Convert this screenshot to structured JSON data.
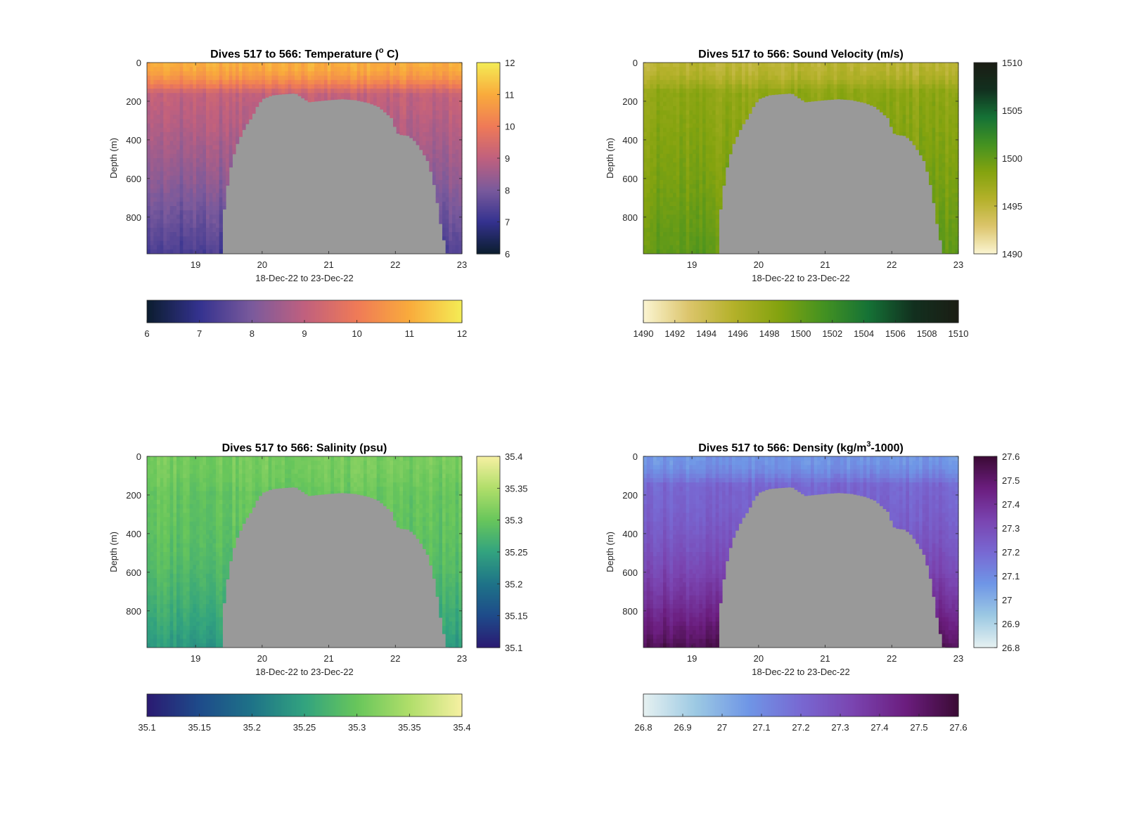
{
  "chart_data": [
    {
      "type": "heatmap",
      "title": "Dives 517 to 566: Temperature (",
      "title_super": "o",
      "title_after": " C)",
      "xlabel": "18-Dec-22 to 23-Dec-22",
      "ylabel": "Depth (m)",
      "xlim": [
        18.27,
        23.0
      ],
      "ylim": [
        0,
        990
      ],
      "y_reversed": true,
      "xticks": [
        19,
        20,
        21,
        22,
        23
      ],
      "yticks": [
        0,
        200,
        400,
        600,
        800
      ],
      "colormap": [
        "#0b1d2e",
        "#34328f",
        "#7a5a9c",
        "#c0607e",
        "#ef7a57",
        "#f9ab3c",
        "#f4ec55"
      ],
      "clim": [
        6,
        12
      ],
      "colorbar_ticks": [
        6,
        7,
        8,
        9,
        10,
        11,
        12
      ],
      "horizontal_colorbar_ticks": [
        6,
        7,
        8,
        9,
        10,
        11,
        12
      ],
      "surface_value": 11.0,
      "deep_value": 7.8,
      "bottom_value": 7.3,
      "transition_depth": 160,
      "no_data_color": "#999999"
    },
    {
      "type": "heatmap",
      "title": "Dives 517 to 566: Sound Velocity (m/s)",
      "xlabel": "18-Dec-22 to 23-Dec-22",
      "ylabel": "Depth (m)",
      "xlim": [
        18.27,
        23.0
      ],
      "ylim": [
        0,
        990
      ],
      "y_reversed": true,
      "xticks": [
        19,
        20,
        21,
        22,
        23
      ],
      "yticks": [
        0,
        200,
        400,
        600,
        800
      ],
      "colormap": [
        "#fbf5d2",
        "#dcc56c",
        "#b4b12a",
        "#84a30f",
        "#449221",
        "#157236",
        "#12301f",
        "#1b1d14"
      ],
      "clim": [
        1490,
        1510
      ],
      "colorbar_ticks": [
        1490,
        1495,
        1500,
        1505,
        1510
      ],
      "horizontal_colorbar_ticks": [
        1490,
        1492,
        1494,
        1496,
        1498,
        1500,
        1502,
        1504,
        1506,
        1508,
        1510
      ],
      "surface_value": 1495.2,
      "deep_value": 1499.6,
      "bottom_value": 1500.2,
      "transition_depth": 150,
      "no_data_color": "#999999"
    },
    {
      "type": "heatmap",
      "title": "Dives 517 to 566: Salinity (psu)",
      "xlabel": "18-Dec-22 to 23-Dec-22",
      "ylabel": "Depth (m)",
      "xlim": [
        18.27,
        23.0
      ],
      "ylim": [
        0,
        990
      ],
      "y_reversed": true,
      "xticks": [
        19,
        20,
        21,
        22,
        23
      ],
      "yticks": [
        0,
        200,
        400,
        600,
        800
      ],
      "colormap": [
        "#2b1a72",
        "#1e4b8a",
        "#1e7388",
        "#32a37f",
        "#68c65b",
        "#b0de6a",
        "#f6f0a2"
      ],
      "clim": [
        35.1,
        35.4
      ],
      "colorbar_ticks": [
        35.1,
        35.15,
        35.2,
        35.25,
        35.3,
        35.35,
        35.4
      ],
      "horizontal_colorbar_ticks": [
        35.1,
        35.15,
        35.2,
        35.25,
        35.3,
        35.35,
        35.4
      ],
      "surface_value": 35.31,
      "deep_value": 35.29,
      "bottom_value": 35.24,
      "transition_depth": 190,
      "no_data_color": "#999999"
    },
    {
      "type": "heatmap",
      "title": "Dives 517 to 566: Density (kg/m",
      "title_super": "3",
      "title_after": "-1000)",
      "xlabel": "18-Dec-22 to 23-Dec-22",
      "ylabel": "Depth (m)",
      "xlim": [
        18.27,
        23.0
      ],
      "ylim": [
        0,
        990
      ],
      "y_reversed": true,
      "xticks": [
        19,
        20,
        21,
        22,
        23
      ],
      "yticks": [
        0,
        200,
        400,
        600,
        800
      ],
      "colormap": [
        "#e6f1f1",
        "#9cc9e3",
        "#6f96e6",
        "#7868d2",
        "#7a44b0",
        "#6b1d7e",
        "#3b0b35"
      ],
      "clim": [
        26.8,
        27.6
      ],
      "colorbar_ticks": [
        26.8,
        26.9,
        27,
        27.1,
        27.2,
        27.3,
        27.4,
        27.5,
        27.6
      ],
      "horizontal_colorbar_ticks": [
        26.8,
        26.9,
        27,
        27.1,
        27.2,
        27.3,
        27.4,
        27.5,
        27.6
      ],
      "surface_value": 27.07,
      "deep_value": 27.3,
      "bottom_value": 27.55,
      "transition_depth": 150,
      "no_data_color": "#999999"
    }
  ],
  "bathymetry": {
    "x": [
      18.27,
      19.4,
      19.42,
      19.5,
      19.6,
      19.68,
      19.75,
      19.85,
      19.92,
      20.0,
      20.15,
      20.3,
      20.5,
      20.7,
      21.0,
      21.2,
      21.4,
      21.6,
      21.75,
      21.85,
      21.95,
      22.02,
      22.08,
      22.2,
      22.3,
      22.4,
      22.5,
      22.6,
      22.7,
      22.78,
      23.0
    ],
    "depth": [
      990,
      990,
      780,
      580,
      440,
      380,
      330,
      280,
      230,
      190,
      170,
      165,
      160,
      205,
      195,
      190,
      195,
      210,
      230,
      260,
      290,
      365,
      375,
      380,
      410,
      460,
      520,
      660,
      880,
      990,
      990
    ]
  }
}
